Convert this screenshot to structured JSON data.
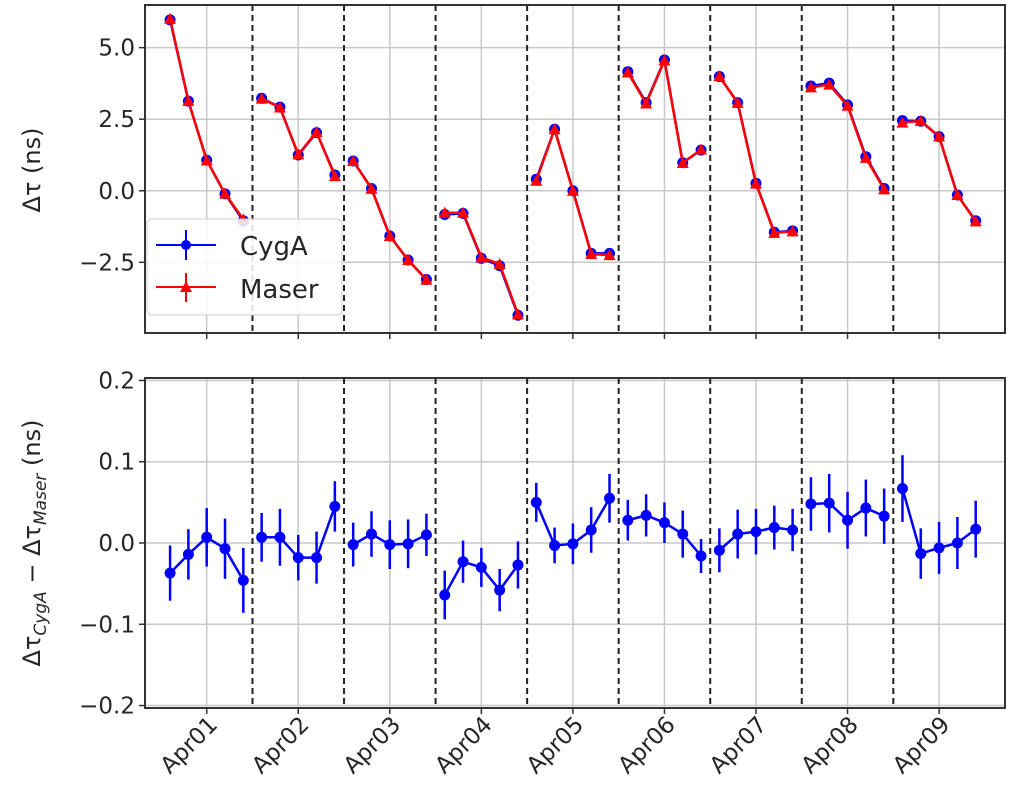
{
  "chart_data": [
    {
      "type": "line",
      "panel": "top",
      "ylabel": "Δτ (ns)",
      "ylim": [
        -4.97,
        6.49
      ],
      "xlim": [
        -0.674,
        8.72
      ],
      "x_unit": "days since Apr01",
      "yticks": [
        5.0,
        2.5,
        0.0,
        -2.5
      ],
      "ytick_labels": [
        "5.0",
        "2.5",
        "0.0",
        "−2.5"
      ],
      "grid": true,
      "day_separators": [
        0.5,
        1.5,
        2.5,
        3.5,
        4.5,
        5.5,
        6.5,
        7.5
      ],
      "legend": {
        "placement": "lower-left",
        "entries": [
          "CygA",
          "Maser"
        ]
      },
      "x_offsets_within_day": [
        -0.4,
        -0.2,
        0.0,
        0.2,
        0.4
      ],
      "series": [
        {
          "name": "CygA",
          "color": "#0000ff",
          "marker": "circle",
          "values": [
            [
              5.97,
              3.13,
              1.07,
              -0.11,
              -1.05
            ],
            [
              3.23,
              2.92,
              1.25,
              2.03,
              0.55
            ],
            [
              1.04,
              0.08,
              -1.58,
              -2.42,
              -3.1
            ],
            [
              -0.83,
              -0.79,
              -2.36,
              -2.62,
              -4.35
            ],
            [
              0.4,
              2.15,
              0.0,
              -2.19,
              -2.19
            ],
            [
              4.16,
              3.08,
              4.57,
              0.98,
              1.42
            ],
            [
              3.99,
              3.08,
              0.26,
              -1.45,
              -1.4
            ],
            [
              3.66,
              3.76,
              3.0,
              1.19,
              0.08
            ],
            [
              2.45,
              2.43,
              1.89,
              -0.15,
              -1.05
            ]
          ]
        },
        {
          "name": "Maser",
          "color": "#ff0000",
          "marker": "triangle",
          "values": [
            [
              6.01,
              3.14,
              1.06,
              -0.1,
              -1.0
            ],
            [
              3.22,
              2.91,
              1.27,
              2.05,
              0.51
            ],
            [
              1.04,
              0.07,
              -1.58,
              -2.42,
              -3.11
            ],
            [
              -0.77,
              -0.77,
              -2.33,
              -2.56,
              -4.32
            ],
            [
              0.35,
              2.15,
              0.0,
              -2.21,
              -2.25
            ],
            [
              4.13,
              3.05,
              4.55,
              0.97,
              1.44
            ],
            [
              4.0,
              3.07,
              0.25,
              -1.47,
              -1.42
            ],
            [
              3.61,
              3.71,
              2.97,
              1.15,
              0.05
            ],
            [
              2.38,
              2.44,
              1.9,
              -0.15,
              -1.07
            ]
          ]
        }
      ]
    },
    {
      "type": "line",
      "panel": "bottom",
      "ylabel_main": "Δτ",
      "ylabel_sub1": "CygA",
      "ylabel_minus": " − Δτ",
      "ylabel_sub2": "Maser",
      "ylabel_unit": " (ns)",
      "ylim": [
        -0.203,
        0.203
      ],
      "xlim": [
        -0.674,
        8.72
      ],
      "yticks": [
        0.2,
        0.1,
        0.0,
        -0.1,
        -0.2
      ],
      "ytick_labels": [
        "0.2",
        "0.1",
        "0.0",
        "−0.1",
        "−0.2"
      ],
      "xticks": [
        0,
        1,
        2,
        3,
        4,
        5,
        6,
        7,
        8
      ],
      "xtick_labels": [
        "Apr01",
        "Apr02",
        "Apr03",
        "Apr04",
        "Apr05",
        "Apr06",
        "Apr07",
        "Apr08",
        "Apr09"
      ],
      "grid": true,
      "day_separators": [
        0.5,
        1.5,
        2.5,
        3.5,
        4.5,
        5.5,
        6.5,
        7.5
      ],
      "x_offsets_within_day": [
        -0.4,
        -0.2,
        0.0,
        0.2,
        0.4
      ],
      "series": [
        {
          "name": "CygA - Maser",
          "color": "#0000ff",
          "values": [
            [
              -0.037,
              -0.014,
              0.007,
              -0.007,
              -0.046
            ],
            [
              0.007,
              0.007,
              -0.018,
              -0.018,
              0.045
            ],
            [
              -0.002,
              0.011,
              -0.002,
              -0.001,
              0.01
            ],
            [
              -0.064,
              -0.023,
              -0.03,
              -0.058,
              -0.027
            ],
            [
              0.05,
              -0.003,
              -0.001,
              0.016,
              0.055
            ],
            [
              0.028,
              0.034,
              0.025,
              0.011,
              -0.016
            ],
            [
              -0.009,
              0.011,
              0.014,
              0.019,
              0.016
            ],
            [
              0.048,
              0.049,
              0.028,
              0.043,
              0.033
            ],
            [
              0.067,
              -0.013,
              -0.006,
              0.0,
              0.017
            ]
          ],
          "errors": [
            [
              0.034,
              0.031,
              0.036,
              0.037,
              0.04
            ],
            [
              0.03,
              0.035,
              0.028,
              0.032,
              0.031
            ],
            [
              0.027,
              0.028,
              0.03,
              0.03,
              0.026
            ],
            [
              0.03,
              0.026,
              0.024,
              0.026,
              0.029
            ],
            [
              0.024,
              0.022,
              0.025,
              0.028,
              0.03
            ],
            [
              0.025,
              0.026,
              0.025,
              0.029,
              0.021
            ],
            [
              0.027,
              0.03,
              0.028,
              0.027,
              0.026
            ],
            [
              0.033,
              0.036,
              0.035,
              0.035,
              0.034
            ],
            [
              0.041,
              0.031,
              0.032,
              0.032,
              0.035
            ]
          ]
        }
      ]
    }
  ]
}
